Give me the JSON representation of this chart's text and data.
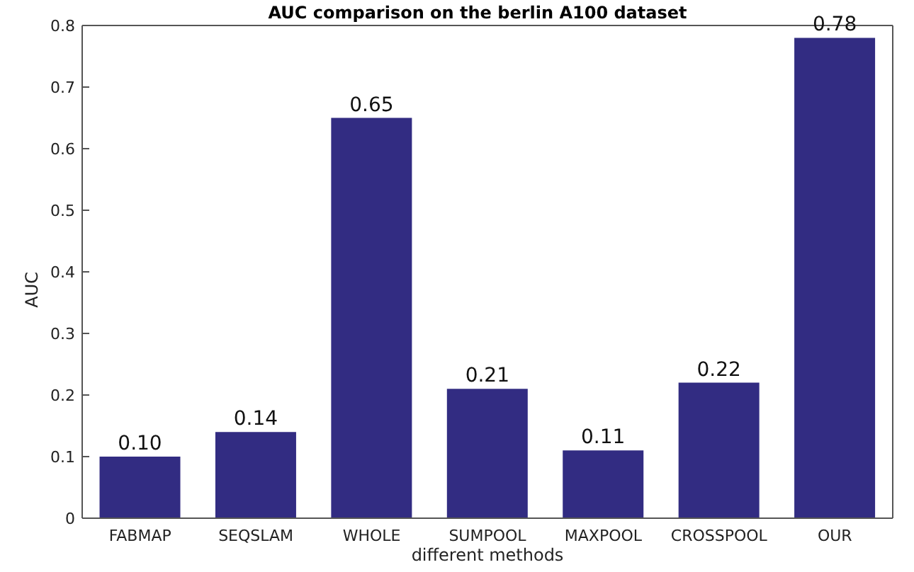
{
  "chart_data": {
    "type": "bar",
    "title": "AUC comparison on the berlin A100 dataset",
    "xlabel": "different methods",
    "ylabel": "AUC",
    "categories": [
      "FABMAP",
      "SEQSLAM",
      "WHOLE",
      "SUMPOOL",
      "MAXPOOL",
      "CROSSPOOL",
      "OUR"
    ],
    "values": [
      0.1,
      0.14,
      0.65,
      0.21,
      0.11,
      0.22,
      0.78
    ],
    "value_labels": [
      "0.10",
      "0.14",
      "0.65",
      "0.21",
      "0.11",
      "0.22",
      "0.78"
    ],
    "color": "#322c82",
    "ylim": [
      0,
      0.8
    ],
    "yticks": [
      0,
      0.1,
      0.2,
      0.3,
      0.4,
      0.5,
      0.6,
      0.7,
      0.8
    ],
    "grid": false,
    "legend": false
  }
}
